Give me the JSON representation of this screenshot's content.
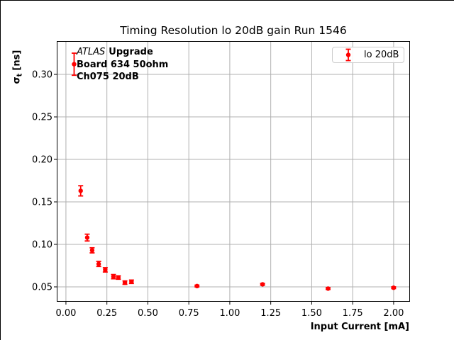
{
  "figure": {
    "title": "Timing Resolution lo 20dB gain Run 1546"
  },
  "axes": {
    "x_label": "Input Current [mA]",
    "y_label_symbol": "σ",
    "y_label_subscript": "t",
    "y_label_unit": "[ns]"
  },
  "annotation": {
    "line1_italic": "ATLAS",
    "line1_bold": "Upgrade",
    "line2": "Board 634 50ohm",
    "line3": "Ch075 20dB"
  },
  "legend": {
    "label": "lo 20dB"
  },
  "colors": {
    "series": "#ff0000",
    "grid": "#b0b0b0",
    "spine": "#000000",
    "tick": "#000000",
    "legend_border": "#cccccc"
  },
  "chart_data": {
    "type": "scatter",
    "title": "Timing Resolution lo 20dB gain Run 1546",
    "xlabel": "Input Current [mA]",
    "ylabel": "σ_t [ns]",
    "xlim": [
      -0.056,
      2.1
    ],
    "ylim": [
      0.0325,
      0.3392
    ],
    "xticks": [
      0.0,
      0.25,
      0.5,
      0.75,
      1.0,
      1.25,
      1.5,
      1.75,
      2.0
    ],
    "yticks": [
      0.05,
      0.1,
      0.15,
      0.2,
      0.25,
      0.3
    ],
    "grid": true,
    "legend_position": "upper right",
    "series": [
      {
        "name": "lo 20dB",
        "color": "#ff0000",
        "marker": "circle-with-errorbar",
        "x": [
          0.05,
          0.09,
          0.13,
          0.16,
          0.2,
          0.24,
          0.29,
          0.32,
          0.36,
          0.4,
          0.8,
          1.2,
          1.6,
          2.0
        ],
        "y": [
          0.312,
          0.163,
          0.108,
          0.093,
          0.077,
          0.07,
          0.062,
          0.061,
          0.055,
          0.056,
          0.051,
          0.053,
          0.048,
          0.049
        ],
        "yerr": [
          0.013,
          0.006,
          0.004,
          0.003,
          0.003,
          0.0025,
          0.0025,
          0.002,
          0.002,
          0.002,
          0.001,
          0.001,
          0.001,
          0.001
        ]
      }
    ]
  }
}
